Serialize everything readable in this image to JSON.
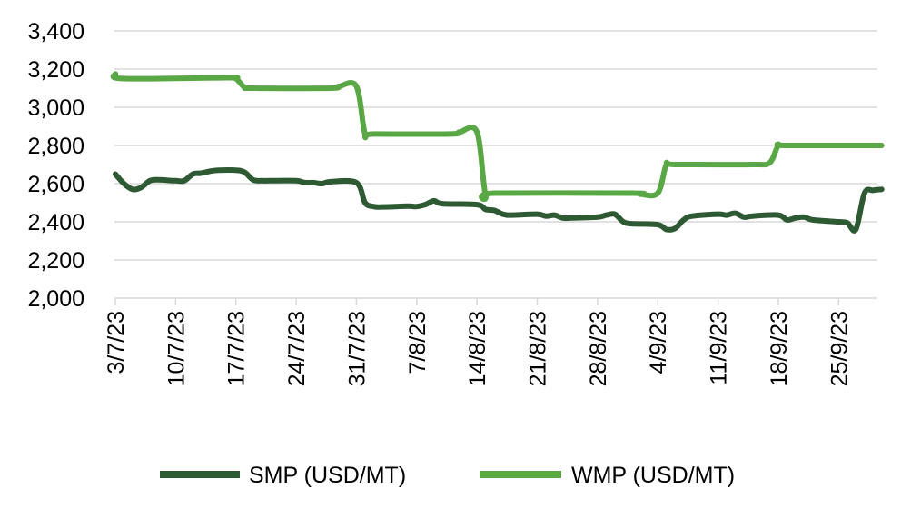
{
  "chart_data": {
    "type": "line",
    "title": "",
    "xlabel": "",
    "ylabel": "",
    "ylim": [
      2000,
      3400
    ],
    "yticks": [
      "2,000",
      "2,200",
      "2,400",
      "2,600",
      "2,800",
      "3,000",
      "3,200",
      "3,400"
    ],
    "xlim": [
      "2023-07-03",
      "2023-09-30"
    ],
    "xticks": [
      {
        "date": "2023-07-03",
        "label": "3/7/23"
      },
      {
        "date": "2023-07-10",
        "label": "10/7/23"
      },
      {
        "date": "2023-07-17",
        "label": "17/7/23"
      },
      {
        "date": "2023-07-24",
        "label": "24/7/23"
      },
      {
        "date": "2023-07-31",
        "label": "31/7/23"
      },
      {
        "date": "2023-08-07",
        "label": "7/8/23"
      },
      {
        "date": "2023-08-14",
        "label": "14/8/23"
      },
      {
        "date": "2023-08-21",
        "label": "21/8/23"
      },
      {
        "date": "2023-08-28",
        "label": "28/8/23"
      },
      {
        "date": "2023-09-04",
        "label": "4/9/23"
      },
      {
        "date": "2023-09-11",
        "label": "11/9/23"
      },
      {
        "date": "2023-09-18",
        "label": "18/9/23"
      },
      {
        "date": "2023-09-25",
        "label": "25/9/23"
      }
    ],
    "grid": true,
    "legend_position": "bottom",
    "series": [
      {
        "name": "SMP (USD/MT)",
        "color": "#2d5a32",
        "points": [
          [
            "2023-07-03",
            2650
          ],
          [
            "2023-07-04",
            2600
          ],
          [
            "2023-07-05",
            2570
          ],
          [
            "2023-07-06",
            2580
          ],
          [
            "2023-07-07",
            2615
          ],
          [
            "2023-07-08",
            2620
          ],
          [
            "2023-07-10",
            2615
          ],
          [
            "2023-07-11",
            2615
          ],
          [
            "2023-07-12",
            2650
          ],
          [
            "2023-07-13",
            2655
          ],
          [
            "2023-07-14",
            2665
          ],
          [
            "2023-07-15",
            2670
          ],
          [
            "2023-07-17",
            2670
          ],
          [
            "2023-07-18",
            2660
          ],
          [
            "2023-07-19",
            2620
          ],
          [
            "2023-07-20",
            2615
          ],
          [
            "2023-07-21",
            2615
          ],
          [
            "2023-07-24",
            2615
          ],
          [
            "2023-07-25",
            2605
          ],
          [
            "2023-07-26",
            2605
          ],
          [
            "2023-07-27",
            2600
          ],
          [
            "2023-07-28",
            2610
          ],
          [
            "2023-07-31",
            2605
          ],
          [
            "2023-08-01",
            2500
          ],
          [
            "2023-08-02",
            2480
          ],
          [
            "2023-08-03",
            2478
          ],
          [
            "2023-08-06",
            2482
          ],
          [
            "2023-08-07",
            2480
          ],
          [
            "2023-08-08",
            2490
          ],
          [
            "2023-08-09",
            2510
          ],
          [
            "2023-08-10",
            2495
          ],
          [
            "2023-08-14",
            2490
          ],
          [
            "2023-08-15",
            2465
          ],
          [
            "2023-08-16",
            2460
          ],
          [
            "2023-08-17",
            2440
          ],
          [
            "2023-08-18",
            2435
          ],
          [
            "2023-08-21",
            2440
          ],
          [
            "2023-08-22",
            2430
          ],
          [
            "2023-08-23",
            2435
          ],
          [
            "2023-08-24",
            2420
          ],
          [
            "2023-08-25",
            2420
          ],
          [
            "2023-08-28",
            2425
          ],
          [
            "2023-08-29",
            2435
          ],
          [
            "2023-08-30",
            2440
          ],
          [
            "2023-08-31",
            2400
          ],
          [
            "2023-09-01",
            2390
          ],
          [
            "2023-09-04",
            2385
          ],
          [
            "2023-09-05",
            2360
          ],
          [
            "2023-09-06",
            2365
          ],
          [
            "2023-09-07",
            2410
          ],
          [
            "2023-09-08",
            2430
          ],
          [
            "2023-09-11",
            2440
          ],
          [
            "2023-09-12",
            2435
          ],
          [
            "2023-09-13",
            2445
          ],
          [
            "2023-09-14",
            2425
          ],
          [
            "2023-09-15",
            2430
          ],
          [
            "2023-09-18",
            2435
          ],
          [
            "2023-09-19",
            2410
          ],
          [
            "2023-09-20",
            2420
          ],
          [
            "2023-09-21",
            2425
          ],
          [
            "2023-09-22",
            2410
          ],
          [
            "2023-09-25",
            2400
          ],
          [
            "2023-09-26",
            2395
          ],
          [
            "2023-09-27",
            2360
          ],
          [
            "2023-09-28",
            2550
          ],
          [
            "2023-09-29",
            2565
          ],
          [
            "2023-09-30",
            2570
          ]
        ]
      },
      {
        "name": "WMP (USD/MT)",
        "color": "#5aa845",
        "points": [
          [
            "2023-07-03",
            3175
          ],
          [
            "2023-07-04",
            3150
          ],
          [
            "2023-07-16",
            3155
          ],
          [
            "2023-07-17",
            3150
          ],
          [
            "2023-07-18",
            3105
          ],
          [
            "2023-07-19",
            3100
          ],
          [
            "2023-07-28",
            3100
          ],
          [
            "2023-07-29",
            3110
          ],
          [
            "2023-07-31",
            3110
          ],
          [
            "2023-08-01",
            2860
          ],
          [
            "2023-08-02",
            2860
          ],
          [
            "2023-08-11",
            2860
          ],
          [
            "2023-08-12",
            2870
          ],
          [
            "2023-08-14",
            2870
          ],
          [
            "2023-08-15",
            2540
          ],
          [
            "2023-08-16",
            2550
          ],
          [
            "2023-09-01",
            2550
          ],
          [
            "2023-09-02",
            2545
          ],
          [
            "2023-09-04",
            2550
          ],
          [
            "2023-09-05",
            2700
          ],
          [
            "2023-09-06",
            2700
          ],
          [
            "2023-09-15",
            2700
          ],
          [
            "2023-09-17",
            2710
          ],
          [
            "2023-09-18",
            2800
          ],
          [
            "2023-09-19",
            2800
          ],
          [
            "2023-09-30",
            2800
          ]
        ]
      }
    ]
  }
}
